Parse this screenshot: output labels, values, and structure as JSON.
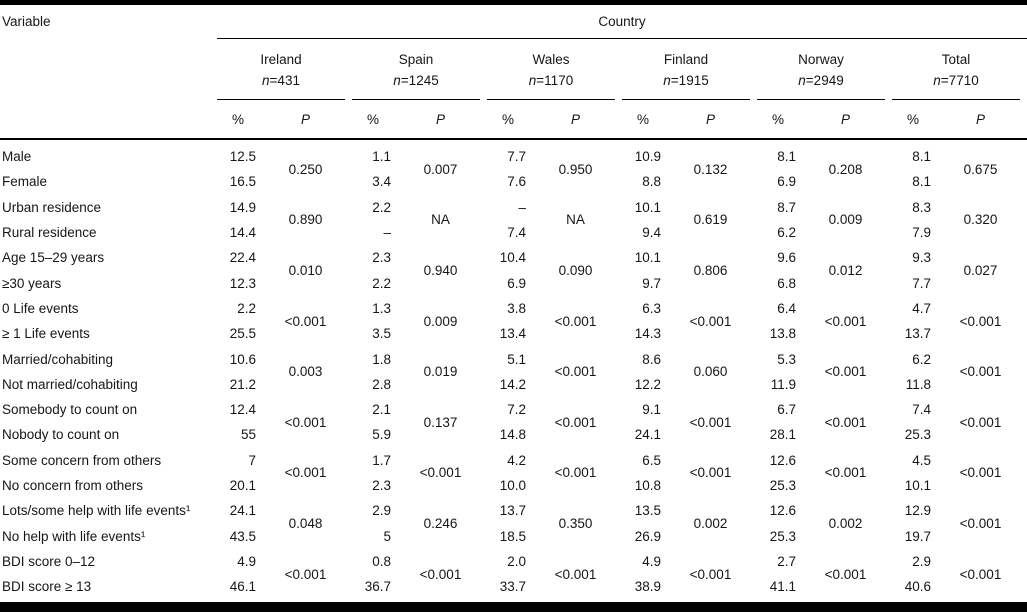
{
  "table": {
    "variable_header": "Variable",
    "country_header": "Country",
    "pct_header": "%",
    "p_header": "P",
    "n_prefix": "n",
    "countries": [
      {
        "name": "Ireland",
        "n": "=431"
      },
      {
        "name": "Spain",
        "n": "=1245"
      },
      {
        "name": "Wales",
        "n": "=1170"
      },
      {
        "name": "Finland",
        "n": "=1915"
      },
      {
        "name": "Norway",
        "n": "=2949"
      },
      {
        "name": "Total",
        "n": "=7710"
      }
    ],
    "groups": [
      {
        "rows": [
          {
            "label": "Male",
            "pct": [
              "12.5",
              "1.1",
              "7.7",
              "10.9",
              "8.1",
              "8.1"
            ]
          },
          {
            "label": "Female",
            "pct": [
              "16.5",
              "3.4",
              "7.6",
              "8.8",
              "6.9",
              "8.1"
            ]
          }
        ],
        "p": [
          "0.250",
          "0.007",
          "0.950",
          "0.132",
          "0.208",
          "0.675"
        ]
      },
      {
        "rows": [
          {
            "label": "Urban residence",
            "pct": [
              "14.9",
              "2.2",
              "–",
              "10.1",
              "8.7",
              "8.3"
            ]
          },
          {
            "label": "Rural residence",
            "pct": [
              "14.4",
              "–",
              "7.4",
              "9.4",
              "6.2",
              "7.9"
            ]
          }
        ],
        "p": [
          "0.890",
          "NA",
          "NA",
          "0.619",
          "0.009",
          "0.320"
        ]
      },
      {
        "rows": [
          {
            "label": "Age 15–29 years",
            "pct": [
              "22.4",
              "2.3",
              "10.4",
              "10.1",
              "9.6",
              "9.3"
            ]
          },
          {
            "label": "≥30 years",
            "pct": [
              "12.3",
              "2.2",
              "6.9",
              "9.7",
              "6.8",
              "7.7"
            ]
          }
        ],
        "p": [
          "0.010",
          "0.940",
          "0.090",
          "0.806",
          "0.012",
          "0.027"
        ]
      },
      {
        "rows": [
          {
            "label": "0 Life events",
            "pct": [
              "2.2",
              "1.3",
              "3.8",
              "6.3",
              "6.4",
              "4.7"
            ]
          },
          {
            "label": "≥ 1 Life events",
            "pct": [
              "25.5",
              "3.5",
              "13.4",
              "14.3",
              "13.8",
              "13.7"
            ]
          }
        ],
        "p": [
          "<0.001",
          "0.009",
          "<0.001",
          "<0.001",
          "<0.001",
          "<0.001"
        ]
      },
      {
        "rows": [
          {
            "label": "Married/cohabiting",
            "pct": [
              "10.6",
              "1.8",
              "5.1",
              "8.6",
              "5.3",
              "6.2"
            ]
          },
          {
            "label": "Not married/cohabiting",
            "pct": [
              "21.2",
              "2.8",
              "14.2",
              "12.2",
              "11.9",
              "11.8"
            ]
          }
        ],
        "p": [
          "0.003",
          "0.019",
          "<0.001",
          "0.060",
          "<0.001",
          "<0.001"
        ]
      },
      {
        "rows": [
          {
            "label": "Somebody to count on",
            "pct": [
              "12.4",
              "2.1",
              "7.2",
              "9.1",
              "6.7",
              "7.4"
            ]
          },
          {
            "label": "Nobody to count on",
            "pct": [
              "55",
              "5.9",
              "14.8",
              "24.1",
              "28.1",
              "25.3"
            ]
          }
        ],
        "p": [
          "<0.001",
          "0.137",
          "<0.001",
          "<0.001",
          "<0.001",
          "<0.001"
        ]
      },
      {
        "rows": [
          {
            "label": "Some concern from others",
            "pct": [
              "7",
              "1.7",
              "4.2",
              "6.5",
              "12.6",
              "4.5"
            ]
          },
          {
            "label": "No concern from others",
            "pct": [
              "20.1",
              "2.3",
              "10.0",
              "10.8",
              "25.3",
              "10.1"
            ]
          }
        ],
        "p": [
          "<0.001",
          "<0.001",
          "<0.001",
          "<0.001",
          "<0.001",
          "<0.001"
        ]
      },
      {
        "rows": [
          {
            "label": "Lots/some help with life events¹",
            "pct": [
              "24.1",
              "2.9",
              "13.7",
              "13.5",
              "12.6",
              "12.9"
            ]
          },
          {
            "label": "No help with life events¹",
            "pct": [
              "43.5",
              "5",
              "18.5",
              "26.9",
              "25.3",
              "19.7"
            ]
          }
        ],
        "p": [
          "0.048",
          "0.246",
          "0.350",
          "0.002",
          "0.002",
          "<0.001"
        ]
      },
      {
        "rows": [
          {
            "label": "BDI score 0–12",
            "pct": [
              "4.9",
              "0.8",
              "2.0",
              "4.9",
              "2.7",
              "2.9"
            ]
          },
          {
            "label": "BDI score ≥ 13",
            "pct": [
              "46.1",
              "36.7",
              "33.7",
              "38.9",
              "41.1",
              "40.6"
            ]
          }
        ],
        "p": [
          "<0.001",
          "<0.001",
          "<0.001",
          "<0.001",
          "<0.001",
          "<0.001"
        ]
      }
    ]
  },
  "colors": {
    "text": "#161616",
    "rule": "#000000",
    "background": "#ffffff"
  }
}
